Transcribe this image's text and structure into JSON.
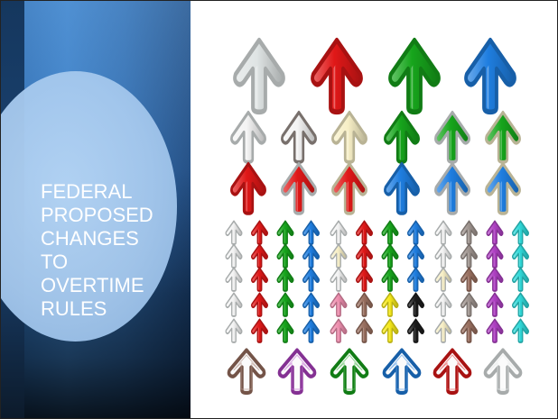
{
  "slide": {
    "title_lines": [
      "FEDERAL",
      "PROPOSED",
      "CHANGES",
      "TO",
      "OVERTIME",
      "RULES"
    ]
  },
  "colors": {
    "silver": "#dfe4e4",
    "red": "#e01818",
    "green": "#17a51c",
    "blue": "#1f7ee0",
    "white": "#f4f4f4",
    "gold": "#f7efc6",
    "pink": "#f090b0",
    "brown": "#9a7060",
    "purple": "#b041c4",
    "cyan": "#2fd9d9",
    "yellow": "#f7ea1a",
    "black": "#1c1c1c",
    "gray": "#a09590"
  },
  "arrow_grid": {
    "large_row": [
      {
        "fill": "silver",
        "stroke": "silver"
      },
      {
        "fill": "red",
        "stroke": "red"
      },
      {
        "fill": "green",
        "stroke": "green"
      },
      {
        "fill": "blue",
        "stroke": "blue"
      }
    ],
    "medium_rows": [
      [
        {
          "fill": "white",
          "stroke": "silver"
        },
        {
          "fill": "white",
          "stroke": "gray"
        },
        {
          "fill": "gold",
          "stroke": "gold"
        },
        {
          "fill": "green",
          "stroke": "green"
        },
        {
          "fill": "green",
          "stroke": "silver"
        },
        {
          "fill": "green",
          "stroke": "gold"
        }
      ],
      [
        {
          "fill": "red",
          "stroke": "red"
        },
        {
          "fill": "red",
          "stroke": "silver"
        },
        {
          "fill": "red",
          "stroke": "gold"
        },
        {
          "fill": "blue",
          "stroke": "blue"
        },
        {
          "fill": "blue",
          "stroke": "silver"
        },
        {
          "fill": "blue",
          "stroke": "gold"
        }
      ]
    ],
    "small_rows": [
      [
        "white",
        "red",
        "green",
        "blue",
        "white",
        "red",
        "green",
        "blue",
        "white",
        "gray",
        "purple",
        "cyan"
      ],
      [
        "white",
        "red",
        "green",
        "blue",
        "gold",
        "red",
        "green",
        "blue",
        "white",
        "gray",
        "purple",
        "cyan"
      ],
      [
        "white",
        "red",
        "green",
        "blue",
        "white",
        "red",
        "green",
        "blue",
        "gold",
        "brown",
        "purple",
        "cyan"
      ],
      [
        "white",
        "red",
        "green",
        "blue",
        "pink",
        "brown",
        "yellow",
        "black",
        "white",
        "gray",
        "purple",
        "cyan"
      ],
      [
        "white",
        "red",
        "green",
        "blue",
        "pink",
        "brown",
        "yellow",
        "black",
        "gold",
        "brown",
        "purple",
        "cyan"
      ]
    ],
    "outline_row": [
      "brown",
      "purple",
      "green",
      "blue",
      "red",
      "silver"
    ]
  }
}
